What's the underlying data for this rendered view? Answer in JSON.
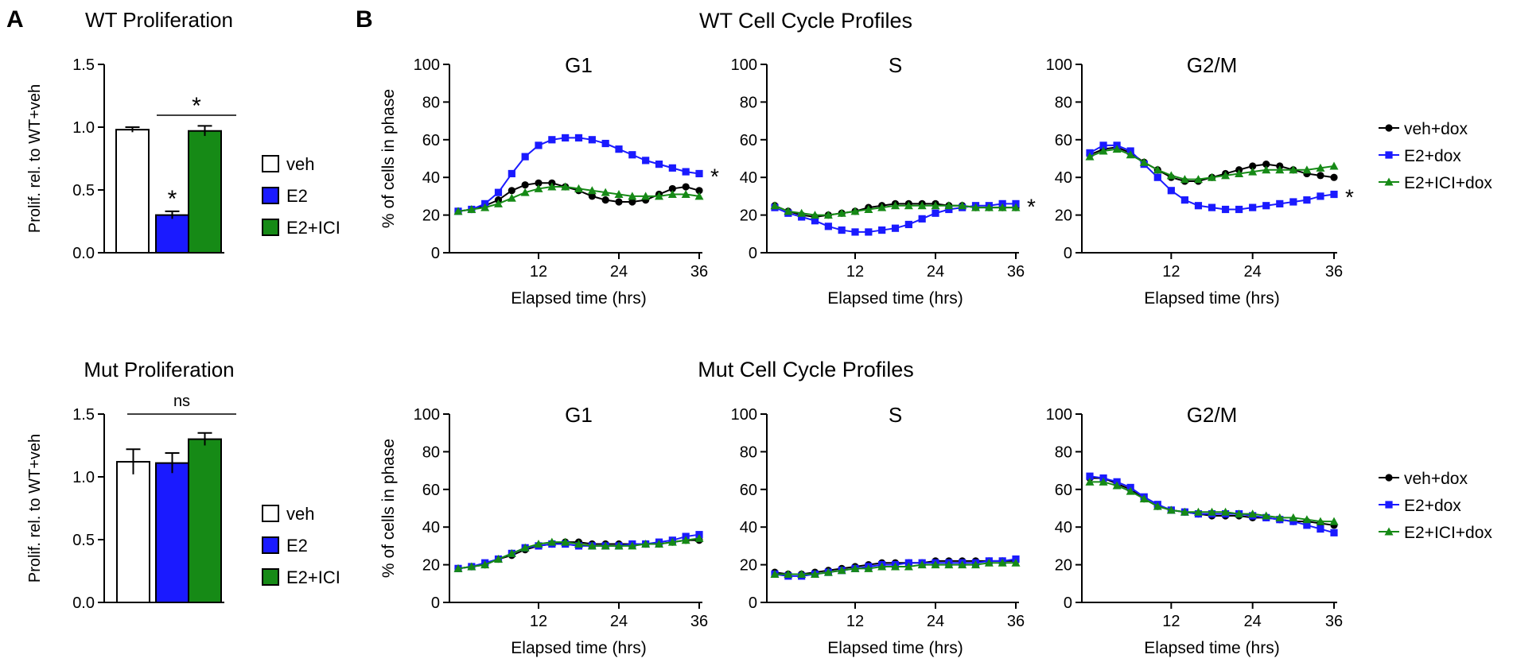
{
  "panel_letters": {
    "a": "A",
    "b": "B"
  },
  "section_titles": {
    "wt": "WT Cell Cycle Profiles",
    "mut": "Mut Cell Cycle Profiles"
  },
  "colors": {
    "veh": "#ffffff",
    "e2": "#1a1aff",
    "e2ici": "#168a16",
    "veh_dox": "#000000",
    "e2_dox": "#1a1aff",
    "e2ici_dox": "#168a16"
  },
  "bar_legend": {
    "entries": [
      "veh",
      "E2",
      "E2+ICI"
    ]
  },
  "line_legend": {
    "entries": [
      "veh+dox",
      "E2+dox",
      "E2+ICI+dox"
    ]
  },
  "chart_data": [
    {
      "id": "wt_prolif",
      "type": "bar",
      "title": "WT Proliferation",
      "ylabel": "Prolif. rel. to WT+veh",
      "xlabel": "",
      "ylim": [
        0,
        1.5
      ],
      "yticks": [
        "0.0",
        "0.5",
        "1.0",
        "1.5"
      ],
      "categories": [
        "veh",
        "E2",
        "E2+ICI"
      ],
      "values": [
        0.98,
        0.3,
        0.97
      ],
      "errors": [
        0.02,
        0.03,
        0.04
      ],
      "annotations": {
        "e2_star": "*",
        "bracket_label": "*"
      }
    },
    {
      "id": "mut_prolif",
      "type": "bar",
      "title": "Mut Proliferation",
      "ylabel": "Prolif. rel. to WT+veh",
      "xlabel": "",
      "ylim": [
        0,
        1.5
      ],
      "yticks": [
        "0.0",
        "0.5",
        "1.0",
        "1.5"
      ],
      "categories": [
        "veh",
        "E2",
        "E2+ICI"
      ],
      "values": [
        1.12,
        1.11,
        1.3
      ],
      "errors": [
        0.1,
        0.08,
        0.05
      ],
      "annotations": {
        "bracket_label": "ns"
      }
    },
    {
      "id": "wt_g1",
      "type": "line",
      "title": "G1",
      "xlabel": "Elapsed time (hrs)",
      "ylabel": "% of cells in phase",
      "xlim": [
        0,
        36
      ],
      "ylim": [
        0,
        100
      ],
      "xticks": [
        "12",
        "24",
        "36"
      ],
      "yticks": [
        "0",
        "20",
        "40",
        "60",
        "80",
        "100"
      ],
      "x": [
        0,
        2,
        4,
        6,
        8,
        10,
        12,
        14,
        16,
        18,
        20,
        22,
        24,
        26,
        28,
        30,
        32,
        34,
        36
      ],
      "series": [
        {
          "name": "veh+dox",
          "values": [
            22,
            23,
            25,
            28,
            33,
            36,
            37,
            37,
            35,
            33,
            30,
            28,
            27,
            27,
            28,
            31,
            34,
            35,
            33
          ]
        },
        {
          "name": "E2+dox",
          "values": [
            22,
            23,
            26,
            32,
            42,
            51,
            57,
            60,
            61,
            61,
            60,
            58,
            55,
            52,
            49,
            47,
            45,
            43,
            42
          ]
        },
        {
          "name": "E2+ICI+dox",
          "values": [
            22,
            23,
            24,
            26,
            29,
            32,
            34,
            35,
            35,
            34,
            33,
            32,
            31,
            30,
            30,
            30,
            31,
            31,
            30
          ]
        }
      ],
      "annotation": "*"
    },
    {
      "id": "wt_s",
      "type": "line",
      "title": "S",
      "xlabel": "Elapsed time (hrs)",
      "ylabel": "",
      "xlim": [
        0,
        36
      ],
      "ylim": [
        0,
        100
      ],
      "xticks": [
        "12",
        "24",
        "36"
      ],
      "yticks": [
        "0",
        "20",
        "40",
        "60",
        "80",
        "100"
      ],
      "x": [
        0,
        2,
        4,
        6,
        8,
        10,
        12,
        14,
        16,
        18,
        20,
        22,
        24,
        26,
        28,
        30,
        32,
        34,
        36
      ],
      "series": [
        {
          "name": "veh+dox",
          "values": [
            25,
            22,
            20,
            19,
            20,
            21,
            22,
            24,
            25,
            26,
            26,
            26,
            26,
            25,
            25,
            24,
            24,
            24,
            24
          ]
        },
        {
          "name": "E2+dox",
          "values": [
            24,
            21,
            19,
            17,
            14,
            12,
            11,
            11,
            12,
            13,
            15,
            18,
            21,
            23,
            24,
            25,
            25,
            26,
            26
          ]
        },
        {
          "name": "E2+ICI+dox",
          "values": [
            25,
            22,
            21,
            20,
            20,
            21,
            22,
            23,
            24,
            25,
            25,
            25,
            25,
            25,
            25,
            24,
            24,
            24,
            24
          ]
        }
      ],
      "annotation": "*"
    },
    {
      "id": "wt_g2m",
      "type": "line",
      "title": "G2/M",
      "xlabel": "Elapsed time (hrs)",
      "ylabel": "",
      "xlim": [
        0,
        36
      ],
      "ylim": [
        0,
        100
      ],
      "xticks": [
        "12",
        "24",
        "36"
      ],
      "yticks": [
        "0",
        "20",
        "40",
        "60",
        "80",
        "100"
      ],
      "x": [
        0,
        2,
        4,
        6,
        8,
        10,
        12,
        14,
        16,
        18,
        20,
        22,
        24,
        26,
        28,
        30,
        32,
        34,
        36
      ],
      "series": [
        {
          "name": "veh+dox",
          "values": [
            52,
            55,
            56,
            53,
            48,
            44,
            40,
            38,
            38,
            40,
            42,
            44,
            46,
            47,
            46,
            44,
            42,
            41,
            40
          ]
        },
        {
          "name": "E2+dox",
          "values": [
            53,
            57,
            57,
            54,
            47,
            40,
            33,
            28,
            25,
            24,
            23,
            23,
            24,
            25,
            26,
            27,
            28,
            30,
            31
          ]
        },
        {
          "name": "E2+ICI+dox",
          "values": [
            51,
            54,
            55,
            52,
            48,
            44,
            41,
            39,
            39,
            40,
            41,
            42,
            43,
            44,
            44,
            44,
            44,
            45,
            46
          ]
        }
      ],
      "annotation": "*"
    },
    {
      "id": "mut_g1",
      "type": "line",
      "title": "G1",
      "xlabel": "Elapsed time (hrs)",
      "ylabel": "% of cells in phase",
      "xlim": [
        0,
        36
      ],
      "ylim": [
        0,
        100
      ],
      "xticks": [
        "12",
        "24",
        "36"
      ],
      "yticks": [
        "0",
        "20",
        "40",
        "60",
        "80",
        "100"
      ],
      "x": [
        0,
        2,
        4,
        6,
        8,
        10,
        12,
        14,
        16,
        18,
        20,
        22,
        24,
        26,
        28,
        30,
        32,
        34,
        36
      ],
      "series": [
        {
          "name": "veh+dox",
          "values": [
            18,
            19,
            20,
            23,
            25,
            28,
            30,
            31,
            32,
            32,
            31,
            31,
            31,
            31,
            31,
            31,
            32,
            33,
            33
          ]
        },
        {
          "name": "E2+dox",
          "values": [
            18,
            19,
            21,
            23,
            26,
            29,
            30,
            31,
            31,
            30,
            30,
            30,
            30,
            31,
            31,
            32,
            33,
            35,
            36
          ]
        },
        {
          "name": "E2+ICI+dox",
          "values": [
            18,
            19,
            20,
            23,
            26,
            29,
            31,
            32,
            32,
            31,
            30,
            30,
            30,
            30,
            31,
            31,
            32,
            33,
            34
          ]
        }
      ]
    },
    {
      "id": "mut_s",
      "type": "line",
      "title": "S",
      "xlabel": "Elapsed time (hrs)",
      "ylabel": "",
      "xlim": [
        0,
        36
      ],
      "ylim": [
        0,
        100
      ],
      "xticks": [
        "12",
        "24",
        "36"
      ],
      "yticks": [
        "0",
        "20",
        "40",
        "60",
        "80",
        "100"
      ],
      "x": [
        0,
        2,
        4,
        6,
        8,
        10,
        12,
        14,
        16,
        18,
        20,
        22,
        24,
        26,
        28,
        30,
        32,
        34,
        36
      ],
      "series": [
        {
          "name": "veh+dox",
          "values": [
            16,
            15,
            15,
            16,
            17,
            18,
            19,
            20,
            21,
            21,
            21,
            21,
            22,
            22,
            22,
            22,
            22,
            22,
            22
          ]
        },
        {
          "name": "E2+dox",
          "values": [
            15,
            14,
            14,
            15,
            16,
            17,
            18,
            19,
            20,
            20,
            21,
            21,
            21,
            21,
            21,
            21,
            22,
            22,
            23
          ]
        },
        {
          "name": "E2+ICI+dox",
          "values": [
            15,
            15,
            15,
            15,
            16,
            17,
            18,
            18,
            19,
            19,
            19,
            20,
            20,
            20,
            20,
            20,
            21,
            21,
            21
          ]
        }
      ]
    },
    {
      "id": "mut_g2m",
      "type": "line",
      "title": "G2/M",
      "xlabel": "Elapsed time (hrs)",
      "ylabel": "",
      "xlim": [
        0,
        36
      ],
      "ylim": [
        0,
        100
      ],
      "xticks": [
        "12",
        "24",
        "36"
      ],
      "yticks": [
        "0",
        "20",
        "40",
        "60",
        "80",
        "100"
      ],
      "x": [
        0,
        2,
        4,
        6,
        8,
        10,
        12,
        14,
        16,
        18,
        20,
        22,
        24,
        26,
        28,
        30,
        32,
        34,
        36
      ],
      "series": [
        {
          "name": "veh+dox",
          "values": [
            66,
            66,
            63,
            60,
            55,
            51,
            49,
            48,
            47,
            46,
            46,
            46,
            45,
            45,
            44,
            43,
            43,
            42,
            41
          ]
        },
        {
          "name": "E2+dox",
          "values": [
            67,
            66,
            64,
            61,
            56,
            52,
            49,
            48,
            47,
            47,
            47,
            47,
            46,
            45,
            44,
            43,
            41,
            39,
            37
          ]
        },
        {
          "name": "E2+ICI+dox",
          "values": [
            64,
            64,
            62,
            59,
            55,
            51,
            49,
            48,
            48,
            48,
            48,
            47,
            47,
            46,
            45,
            45,
            44,
            43,
            43
          ]
        }
      ]
    }
  ]
}
